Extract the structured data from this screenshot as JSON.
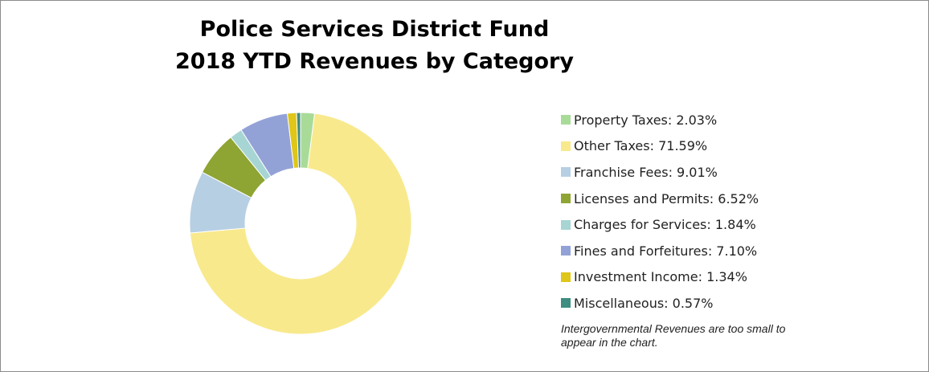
{
  "chart_data": {
    "type": "donut",
    "title": [
      "Police Services District Fund",
      "2018 YTD Revenues by Category"
    ],
    "categories": [
      "Property Taxes: 2.03%",
      "Other Taxes: 71.59%",
      "Franchise Fees: 9.01%",
      "Licenses and Permits: 6.52%",
      "Charges for Services: 1.84%",
      "Fines and Forfeitures: 7.10%",
      "Investment Income: 1.34%",
      "Miscellaneous: 0.57%"
    ],
    "values": [
      2.03,
      71.59,
      9.01,
      6.52,
      1.84,
      7.1,
      1.34,
      0.57
    ],
    "colors": [
      "#a8db98",
      "#f8e98c",
      "#b7cfe3",
      "#8ea433",
      "#a7d5d4",
      "#93a2d6",
      "#dfc618",
      "#3f8c80"
    ],
    "legend": "right",
    "note": "Intergovernmental Revenues are too small to appear in the chart."
  }
}
